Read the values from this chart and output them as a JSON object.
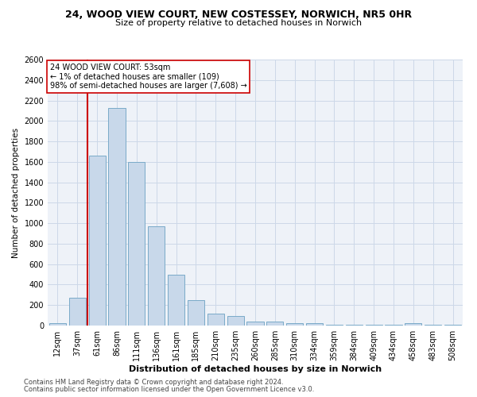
{
  "title1": "24, WOOD VIEW COURT, NEW COSTESSEY, NORWICH, NR5 0HR",
  "title2": "Size of property relative to detached houses in Norwich",
  "xlabel": "Distribution of detached houses by size in Norwich",
  "ylabel": "Number of detached properties",
  "footnote1": "Contains HM Land Registry data © Crown copyright and database right 2024.",
  "footnote2": "Contains public sector information licensed under the Open Government Licence v3.0.",
  "annotation_line1": "24 WOOD VIEW COURT: 53sqm",
  "annotation_line2": "← 1% of detached houses are smaller (109)",
  "annotation_line3": "98% of semi-detached houses are larger (7,608) →",
  "bar_categories": [
    "12sqm",
    "37sqm",
    "61sqm",
    "86sqm",
    "111sqm",
    "136sqm",
    "161sqm",
    "185sqm",
    "210sqm",
    "235sqm",
    "260sqm",
    "285sqm",
    "310sqm",
    "334sqm",
    "359sqm",
    "384sqm",
    "409sqm",
    "434sqm",
    "458sqm",
    "483sqm",
    "508sqm"
  ],
  "bar_values": [
    25,
    270,
    1660,
    2130,
    1600,
    970,
    500,
    245,
    115,
    90,
    40,
    35,
    20,
    20,
    10,
    10,
    5,
    5,
    20,
    5,
    5
  ],
  "bar_color": "#c8d8ea",
  "bar_edge_color": "#7aaac8",
  "vline_color": "#cc0000",
  "vline_x_idx": 1,
  "annotation_box_facecolor": "#ffffff",
  "annotation_box_edgecolor": "#cc0000",
  "grid_color": "#ccd8e8",
  "ylim": [
    0,
    2600
  ],
  "yticks": [
    0,
    200,
    400,
    600,
    800,
    1000,
    1200,
    1400,
    1600,
    1800,
    2000,
    2200,
    2400,
    2600
  ],
  "background_color": "#eef2f8",
  "title1_fontsize": 9,
  "title2_fontsize": 8,
  "ylabel_fontsize": 7.5,
  "xlabel_fontsize": 8,
  "tick_fontsize": 7,
  "footnote_fontsize": 6
}
